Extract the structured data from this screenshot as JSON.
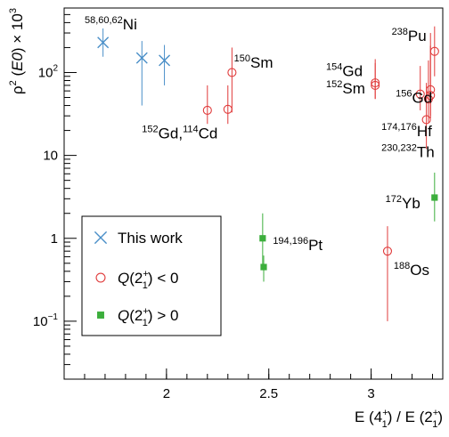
{
  "chart_data": {
    "type": "scatter",
    "title": "",
    "y_scale": "log",
    "xlim": [
      1.5,
      3.35
    ],
    "ylim": [
      0.02,
      600
    ],
    "x_ticks": [
      {
        "value": 2.0,
        "label": "2"
      },
      {
        "value": 2.5,
        "label": "2.5"
      },
      {
        "value": 3.0,
        "label": "3"
      }
    ],
    "y_ticks": [
      {
        "value": 0.1,
        "base": "10",
        "exp": "−1"
      },
      {
        "value": 1,
        "base": "1",
        "exp": ""
      },
      {
        "value": 10,
        "base": "10",
        "exp": ""
      },
      {
        "value": 100,
        "base": "10",
        "exp": "2"
      }
    ],
    "xlabel": {
      "p1": "E (4",
      "sup1": "+",
      "sub1": "1",
      "p2": ") / E (2",
      "sup2": "+",
      "sub2": "1",
      "p3": ")"
    },
    "ylabel": {
      "p1": "ρ",
      "sup1": "2",
      "p2": " (",
      "italic": "E0",
      "p3": ") × 10",
      "sup2": "3"
    },
    "legend": {
      "position": "left",
      "entries": [
        {
          "marker": "x",
          "text_main": "This work",
          "text_italic": "",
          "sup": "",
          "sub": "",
          "tail": ""
        },
        {
          "marker": "o",
          "text_main": "",
          "text_italic": "Q",
          "sup": "+",
          "sub": "1",
          "tail": " < 0",
          "open": "(2",
          "close": ")"
        },
        {
          "marker": "s",
          "text_main": "",
          "text_italic": "Q",
          "sup": "+",
          "sub": "1",
          "tail": " > 0",
          "open": "(2",
          "close": ")"
        }
      ]
    },
    "colors": {
      "this_work": "#4a8fc8",
      "q_negative": "#e03a3a",
      "q_positive": "#3cae3c"
    },
    "series": [
      {
        "name": "This work",
        "marker": "x",
        "color": "#4a8fc8",
        "points": [
          {
            "x": 1.69,
            "y": 230,
            "ylo": 155,
            "yhi": 340
          },
          {
            "x": 1.88,
            "y": 150,
            "ylo": 40,
            "yhi": 240
          },
          {
            "x": 1.99,
            "y": 140,
            "ylo": 70,
            "yhi": 215
          }
        ]
      },
      {
        "name": "Q(2+1) < 0",
        "marker": "o",
        "color": "#e03a3a",
        "points": [
          {
            "x": 2.2,
            "y": 35,
            "ylo": 24,
            "yhi": 70
          },
          {
            "x": 2.3,
            "y": 36,
            "ylo": 24,
            "yhi": 70
          },
          {
            "x": 2.32,
            "y": 100,
            "ylo": 33,
            "yhi": 200
          },
          {
            "x": 3.02,
            "y": 75,
            "ylo": 48,
            "yhi": 145
          },
          {
            "x": 3.02,
            "y": 70,
            "ylo": 48,
            "yhi": 130
          },
          {
            "x": 3.08,
            "y": 0.7,
            "ylo": 0.1,
            "yhi": 1.4
          },
          {
            "x": 3.24,
            "y": 55,
            "ylo": 35,
            "yhi": 120
          },
          {
            "x": 3.27,
            "y": 27,
            "ylo": 12,
            "yhi": 75
          },
          {
            "x": 3.28,
            "y": 48,
            "ylo": 25,
            "yhi": 140
          },
          {
            "x": 3.29,
            "y": 53,
            "ylo": 30,
            "yhi": 210
          },
          {
            "x": 3.29,
            "y": 62,
            "ylo": 28,
            "yhi": 300
          },
          {
            "x": 3.31,
            "y": 180,
            "ylo": 90,
            "yhi": 360
          }
        ]
      },
      {
        "name": "Q(2+1) > 0",
        "marker": "s",
        "color": "#3cae3c",
        "points": [
          {
            "x": 2.47,
            "y": 1.0,
            "ylo": 0.48,
            "yhi": 2.0
          },
          {
            "x": 2.475,
            "y": 0.45,
            "ylo": 0.3,
            "yhi": 0.62
          },
          {
            "x": 3.31,
            "y": 3.1,
            "ylo": 1.6,
            "yhi": 6.2
          }
        ]
      }
    ],
    "annotations": [
      {
        "pre": "58,60,62",
        "el": "Ni",
        "x": 1.6,
        "y": 330
      },
      {
        "pre": "150",
        "el": "Sm",
        "x": 2.33,
        "y": 115
      },
      {
        "pre": "152",
        "el": "Gd,",
        "pre2": "114",
        "el2": "Cd",
        "x": 1.88,
        "y": 16
      },
      {
        "pre": "154",
        "el": "Gd",
        "x": 2.78,
        "y": 90
      },
      {
        "pre": "152",
        "el": "Sm",
        "x": 2.78,
        "y": 56
      },
      {
        "pre": "238",
        "el": "Pu",
        "x": 3.1,
        "y": 240
      },
      {
        "pre": "156",
        "el": "Gd",
        "x": 3.12,
        "y": 43
      },
      {
        "pre": "174,176",
        "el": "Hf",
        "x": 3.05,
        "y": 17
      },
      {
        "pre": "230,232",
        "el": "Th",
        "x": 3.05,
        "y": 9.5
      },
      {
        "pre": "194,196",
        "el": "Pt",
        "x": 2.52,
        "y": 0.72
      },
      {
        "pre": "172",
        "el": "Yb",
        "x": 3.07,
        "y": 2.3
      },
      {
        "pre": "188",
        "el": "Os",
        "x": 3.11,
        "y": 0.36
      }
    ]
  }
}
